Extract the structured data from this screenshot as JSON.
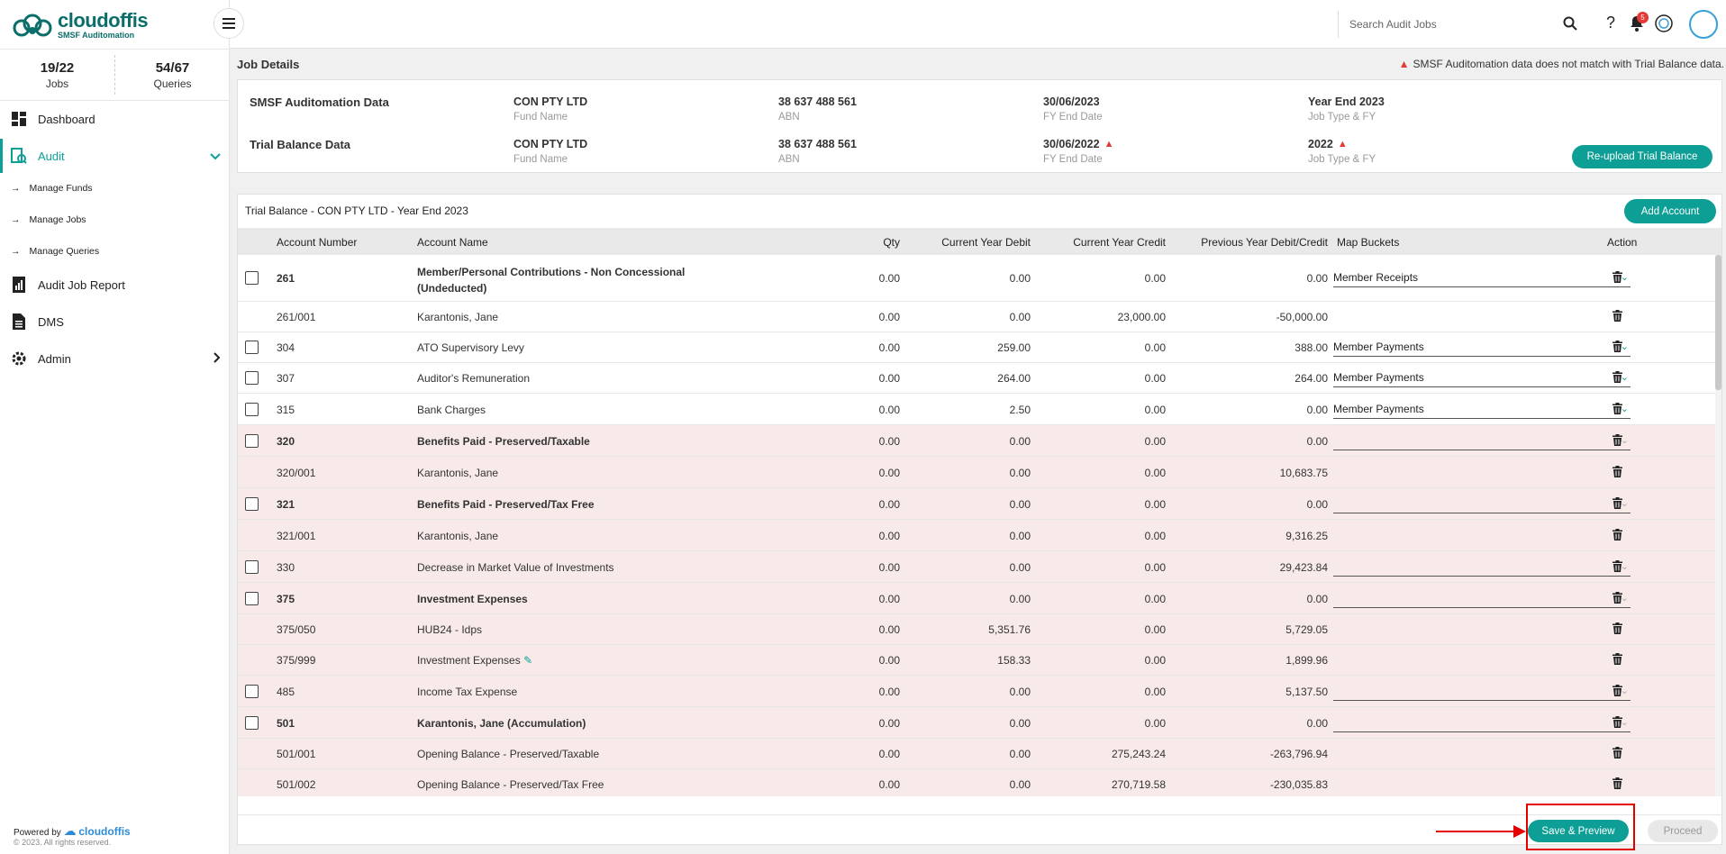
{
  "brand": {
    "name": "cloudoffis",
    "tagline": "SMSF Auditomation"
  },
  "stats": [
    {
      "value": "19/22",
      "label": "Jobs"
    },
    {
      "value": "54/67",
      "label": "Queries"
    }
  ],
  "nav": {
    "dashboard": "Dashboard",
    "audit": "Audit",
    "manage_funds": "Manage Funds",
    "manage_jobs": "Manage Jobs",
    "manage_queries": "Manage Queries",
    "audit_job_report": "Audit Job Report",
    "dms": "DMS",
    "admin": "Admin"
  },
  "footer": {
    "powered": "Powered by",
    "brand": "cloudoffis",
    "rights": "© 2023. All rights reserved."
  },
  "topbar": {
    "search_placeholder": "Search Audit Jobs",
    "notification_count": "5",
    "help": "?"
  },
  "job_details": {
    "title": "Job Details",
    "warning": "SMSF Auditomation data does not match with Trial Balance data.",
    "smsf_label": "SMSF Auditomation Data",
    "tb_label": "Trial Balance Data",
    "smsf": {
      "fund": "CON PTY LTD",
      "abn": "38 637 488 561",
      "fy_end": "30/06/2023",
      "job_type": "Year End 2023"
    },
    "tb": {
      "fund": "CON PTY LTD",
      "abn": "38 637 488 561",
      "fy_end": "30/06/2022",
      "job_type": "2022"
    },
    "sub": {
      "fund": "Fund Name",
      "abn": "ABN",
      "fy_end": "FY End Date",
      "job_type": "Job Type & FY"
    },
    "reupload": "Re-upload Trial Balance"
  },
  "trial_balance": {
    "title": "Trial Balance - CON PTY LTD - Year End 2023",
    "add_account": "Add Account",
    "columns": [
      "Account Number",
      "Account Name",
      "Qty",
      "Current Year Debit",
      "Current Year Credit",
      "Previous Year Debit/Credit",
      "Map Buckets",
      "Action"
    ],
    "rows": [
      {
        "acc": "261",
        "name": "Member/Personal Contributions - Non Concessional",
        "name2": "(Undeducted)",
        "qty": "0.00",
        "debit": "0.00",
        "credit": "0.00",
        "prev": "0.00",
        "bucket": "Member Receipts"
      },
      {
        "acc": "261/001",
        "name": "Karantonis, Jane",
        "qty": "0.00",
        "debit": "0.00",
        "credit": "23,000.00",
        "prev": "-50,000.00"
      },
      {
        "acc": "304",
        "name": "ATO Supervisory Levy",
        "qty": "0.00",
        "debit": "259.00",
        "credit": "0.00",
        "prev": "388.00",
        "bucket": "Member Payments"
      },
      {
        "acc": "307",
        "name": "Auditor's Remuneration",
        "qty": "0.00",
        "debit": "264.00",
        "credit": "0.00",
        "prev": "264.00",
        "bucket": "Member Payments"
      },
      {
        "acc": "315",
        "name": "Bank Charges",
        "qty": "0.00",
        "debit": "2.50",
        "credit": "0.00",
        "prev": "0.00",
        "bucket": "Member Payments"
      },
      {
        "acc": "320",
        "name": "Benefits Paid - Preserved/Taxable",
        "qty": "0.00",
        "debit": "0.00",
        "credit": "0.00",
        "prev": "0.00",
        "bucket": ""
      },
      {
        "acc": "320/001",
        "name": "Karantonis, Jane",
        "qty": "0.00",
        "debit": "0.00",
        "credit": "0.00",
        "prev": "10,683.75"
      },
      {
        "acc": "321",
        "name": "Benefits Paid - Preserved/Tax Free",
        "qty": "0.00",
        "debit": "0.00",
        "credit": "0.00",
        "prev": "0.00",
        "bucket": ""
      },
      {
        "acc": "321/001",
        "name": "Karantonis, Jane",
        "qty": "0.00",
        "debit": "0.00",
        "credit": "0.00",
        "prev": "9,316.25"
      },
      {
        "acc": "330",
        "name": "Decrease in Market Value of Investments",
        "qty": "0.00",
        "debit": "0.00",
        "credit": "0.00",
        "prev": "29,423.84",
        "bucket": ""
      },
      {
        "acc": "375",
        "name": "Investment Expenses",
        "qty": "0.00",
        "debit": "0.00",
        "credit": "0.00",
        "prev": "0.00",
        "bucket": ""
      },
      {
        "acc": "375/050",
        "name": "HUB24 - Idps",
        "qty": "0.00",
        "debit": "5,351.76",
        "credit": "0.00",
        "prev": "5,729.05"
      },
      {
        "acc": "375/999",
        "name": "Investment Expenses",
        "qty": "0.00",
        "debit": "158.33",
        "credit": "0.00",
        "prev": "1,899.96"
      },
      {
        "acc": "485",
        "name": "Income Tax Expense",
        "qty": "0.00",
        "debit": "0.00",
        "credit": "0.00",
        "prev": "5,137.50",
        "bucket": ""
      },
      {
        "acc": "501",
        "name": "Karantonis, Jane (Accumulation)",
        "qty": "0.00",
        "debit": "0.00",
        "credit": "0.00",
        "prev": "0.00",
        "bucket": ""
      },
      {
        "acc": "501/001",
        "name": "Opening Balance - Preserved/Taxable",
        "qty": "0.00",
        "debit": "0.00",
        "credit": "275,243.24",
        "prev": "-263,796.94"
      },
      {
        "acc": "501/002",
        "name": "Opening Balance - Preserved/Tax Free",
        "qty": "0.00",
        "debit": "0.00",
        "credit": "270,719.58",
        "prev": "-230,035.83"
      }
    ],
    "save_preview": "Save & Preview",
    "proceed": "Proceed"
  },
  "colors": {
    "accent": "#0d9e95",
    "warning": "#e53935",
    "highlight": "#e50000",
    "pink_row": "#f9eaea"
  }
}
